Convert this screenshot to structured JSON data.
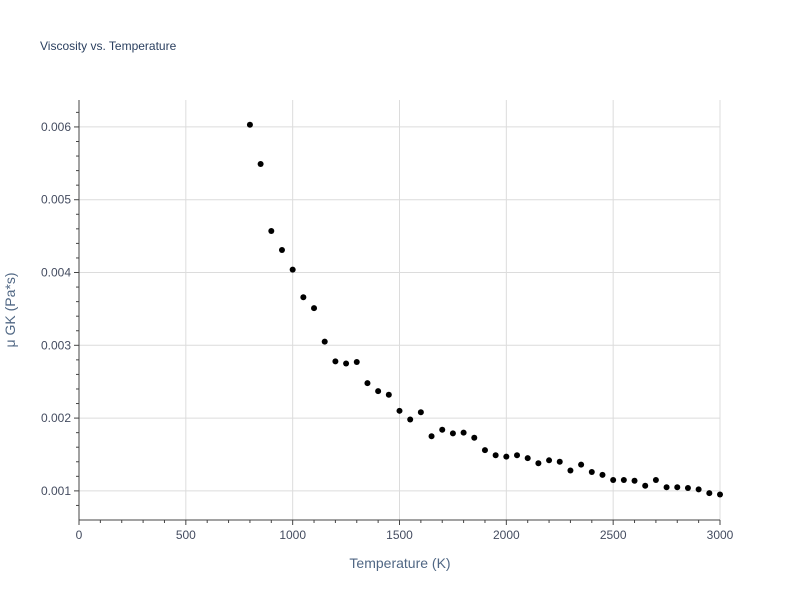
{
  "chart_data": {
    "type": "scatter",
    "title": "Viscosity vs. Temperature",
    "xlabel": "Temperature (K)",
    "ylabel": "μ GK (Pa*s)",
    "xlim": [
      0,
      3000
    ],
    "ylim": [
      0.0006,
      0.00637
    ],
    "xticks": [
      0,
      500,
      1000,
      1500,
      2000,
      2500,
      3000
    ],
    "xtick_labels": [
      "0",
      "500",
      "1000",
      "1500",
      "2000",
      "2500",
      "3000"
    ],
    "yticks": [
      0.001,
      0.002,
      0.003,
      0.004,
      0.005,
      0.006
    ],
    "ytick_labels": [
      "0.001",
      "0.002",
      "0.003",
      "0.004",
      "0.005",
      "0.006"
    ],
    "grid": true,
    "marker_color": "#000000",
    "series": [
      {
        "name": "μ GK",
        "x": [
          800,
          850,
          900,
          950,
          1000,
          1050,
          1100,
          1150,
          1200,
          1250,
          1300,
          1350,
          1400,
          1450,
          1500,
          1550,
          1600,
          1650,
          1700,
          1750,
          1800,
          1850,
          1900,
          1950,
          2000,
          2050,
          2100,
          2150,
          2200,
          2250,
          2300,
          2350,
          2400,
          2450,
          2500,
          2550,
          2600,
          2650,
          2700,
          2750,
          2800,
          2850,
          2900,
          2950,
          3000
        ],
        "y": [
          0.00603,
          0.00549,
          0.00457,
          0.00431,
          0.00404,
          0.00366,
          0.00351,
          0.00305,
          0.00278,
          0.00275,
          0.00277,
          0.00248,
          0.00237,
          0.00232,
          0.0021,
          0.00198,
          0.00208,
          0.00175,
          0.00184,
          0.00179,
          0.0018,
          0.00173,
          0.00156,
          0.00149,
          0.00147,
          0.00149,
          0.00145,
          0.00138,
          0.00142,
          0.0014,
          0.00128,
          0.00136,
          0.00126,
          0.00122,
          0.00115,
          0.00115,
          0.00114,
          0.00107,
          0.00115,
          0.00105,
          0.00105,
          0.00104,
          0.00102,
          0.00097,
          0.00095
        ]
      }
    ]
  }
}
